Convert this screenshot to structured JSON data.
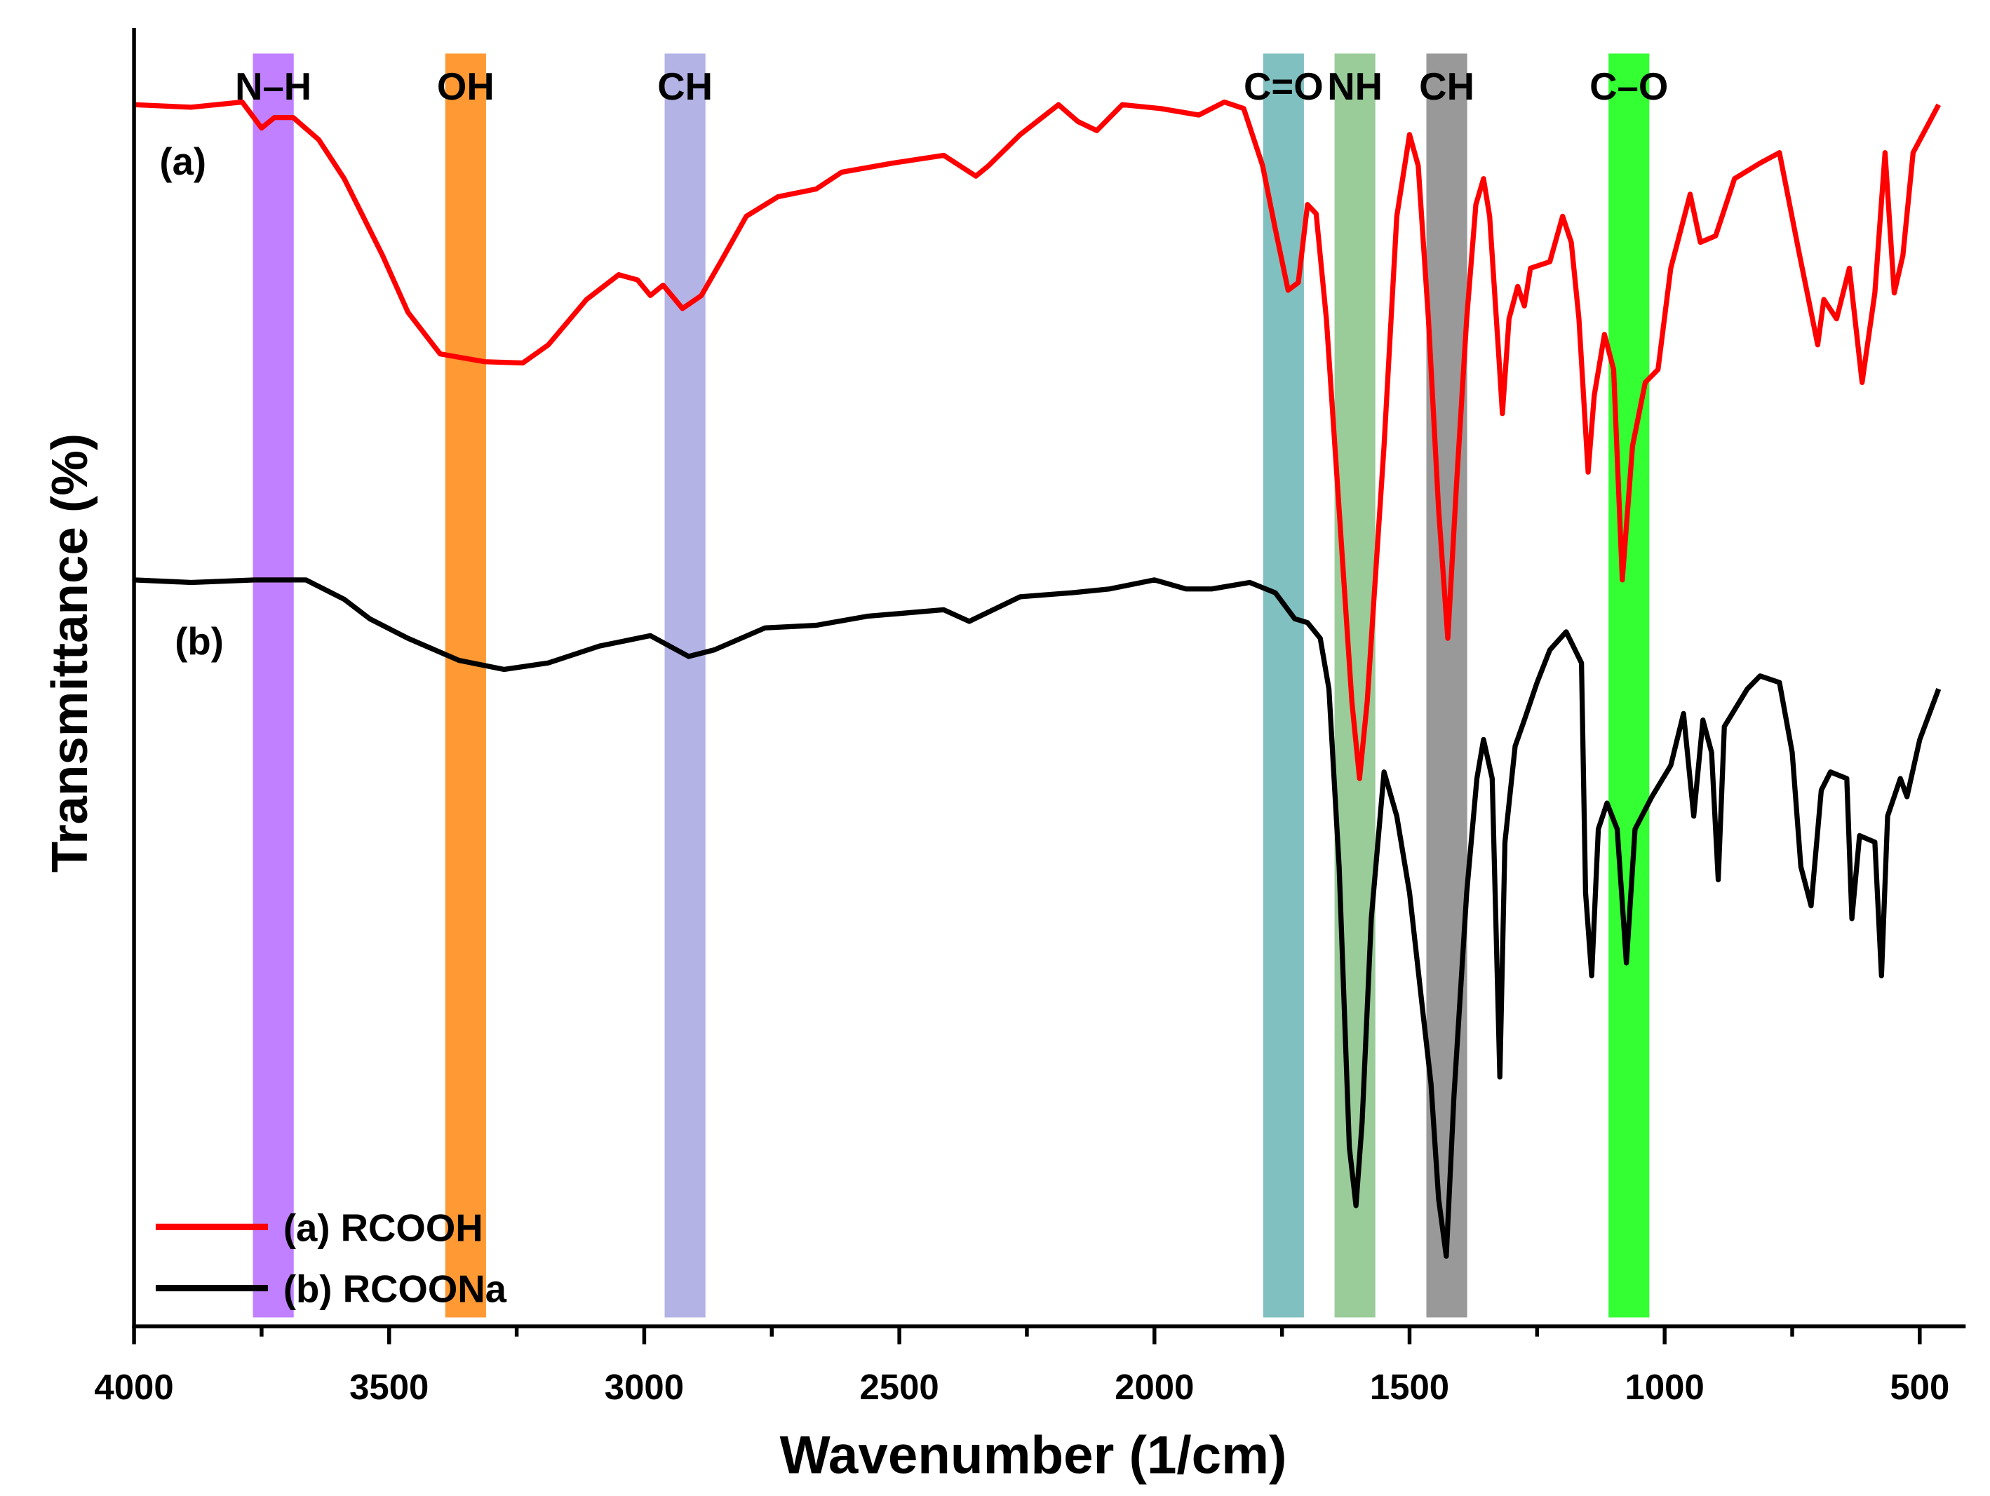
{
  "chart_data": {
    "type": "line",
    "x_label": "Wavenumber (1/cm)",
    "y_label": "Transmittance (%)",
    "xlim": [
      4000,
      410
    ],
    "ylim": [
      0,
      100
    ],
    "xticks": [
      4000,
      3500,
      3000,
      2500,
      2000,
      1500,
      1000,
      500
    ],
    "xminor_ticks": [
      3750,
      3250,
      2750,
      2250,
      1750,
      1250,
      750
    ],
    "legend": "lower left",
    "bands": [
      {
        "label": "N–H",
        "from": 3767,
        "to": 3687,
        "color": "#c080ff"
      },
      {
        "label": "OH",
        "from": 3390,
        "to": 3310,
        "color": "#ff9933"
      },
      {
        "label": "CH",
        "from": 2960,
        "to": 2880,
        "color": "#b3b3e6"
      },
      {
        "label": "C=O",
        "from": 1787,
        "to": 1707,
        "color": "#80c0c0"
      },
      {
        "label": "NH",
        "from": 1647,
        "to": 1567,
        "color": "#99cc99"
      },
      {
        "label": "CH",
        "from": 1467,
        "to": 1387,
        "color": "#999999"
      },
      {
        "label": "C–O",
        "from": 1110,
        "to": 1030,
        "color": "#33ff33"
      }
    ],
    "annotations": [
      "(a)",
      "(b)"
    ],
    "series": [
      {
        "name": "(a) RCOOH",
        "color": "#ff0000",
        "x": [
          4000,
          3888,
          3788,
          3750,
          3725,
          3688,
          3638,
          3588,
          3513,
          3463,
          3400,
          3313,
          3238,
          3188,
          3113,
          3050,
          3013,
          2988,
          2963,
          2925,
          2888,
          2850,
          2800,
          2738,
          2663,
          2613,
          2513,
          2413,
          2350,
          2325,
          2263,
          2188,
          2150,
          2113,
          2063,
          1988,
          1913,
          1863,
          1825,
          1788,
          1763,
          1738,
          1718,
          1700,
          1683,
          1663,
          1638,
          1613,
          1598,
          1583,
          1550,
          1525,
          1500,
          1483,
          1463,
          1443,
          1425,
          1408,
          1388,
          1370,
          1355,
          1343,
          1325,
          1318,
          1305,
          1288,
          1275,
          1263,
          1225,
          1200,
          1183,
          1168,
          1150,
          1138,
          1118,
          1100,
          1083,
          1063,
          1038,
          1013,
          988,
          950,
          930,
          900,
          863,
          813,
          775,
          738,
          700,
          688,
          663,
          638,
          613,
          588,
          568,
          550,
          533,
          513,
          463
        ],
        "values": [
          94.1,
          93.9,
          94.3,
          92.3,
          93.1,
          93.1,
          91.4,
          88.4,
          82.5,
          78.1,
          74.9,
          74.3,
          74.2,
          75.6,
          79.1,
          81.0,
          80.6,
          79.4,
          80.2,
          78.4,
          79.4,
          82.0,
          85.5,
          87.0,
          87.6,
          88.9,
          89.6,
          90.2,
          88.6,
          89.4,
          91.8,
          94.1,
          92.8,
          92.1,
          94.1,
          93.8,
          93.3,
          94.3,
          93.8,
          89.4,
          84.5,
          79.8,
          80.4,
          86.4,
          85.7,
          77.6,
          62.9,
          48.1,
          42.2,
          48.1,
          67.8,
          85.5,
          91.8,
          89.4,
          77.6,
          62.9,
          53.0,
          64.8,
          77.6,
          86.4,
          88.4,
          85.5,
          74.7,
          70.3,
          77.6,
          80.1,
          78.6,
          81.5,
          82.0,
          85.5,
          83.5,
          77.6,
          65.8,
          71.7,
          76.4,
          73.7,
          57.5,
          67.8,
          72.7,
          73.7,
          81.5,
          87.2,
          83.5,
          84.0,
          88.4,
          89.6,
          90.4,
          83.0,
          75.6,
          79.1,
          77.6,
          81.5,
          72.7,
          79.6,
          90.4,
          79.6,
          82.5,
          90.4,
          94.1
        ]
      },
      {
        "name": "(b) RCOONa",
        "color": "#000000",
        "x": [
          4000,
          3888,
          3763,
          3663,
          3588,
          3538,
          3463,
          3363,
          3275,
          3188,
          3088,
          2988,
          2913,
          2863,
          2763,
          2663,
          2563,
          2413,
          2363,
          2263,
          2163,
          2088,
          2000,
          1938,
          1888,
          1813,
          1763,
          1725,
          1700,
          1675,
          1658,
          1638,
          1618,
          1605,
          1593,
          1575,
          1550,
          1525,
          1500,
          1475,
          1458,
          1443,
          1428,
          1413,
          1388,
          1368,
          1355,
          1338,
          1323,
          1313,
          1293,
          1275,
          1250,
          1225,
          1193,
          1163,
          1155,
          1143,
          1130,
          1113,
          1093,
          1075,
          1058,
          1025,
          988,
          963,
          943,
          925,
          908,
          895,
          883,
          838,
          813,
          775,
          750,
          733,
          713,
          693,
          675,
          643,
          633,
          618,
          588,
          575,
          563,
          538,
          525,
          500,
          463
        ],
        "values": [
          57.5,
          57.3,
          57.5,
          57.5,
          56.0,
          54.5,
          53.0,
          51.3,
          50.6,
          51.1,
          52.4,
          53.2,
          51.6,
          52.1,
          53.8,
          54.0,
          54.7,
          55.2,
          54.3,
          56.2,
          56.5,
          56.8,
          57.5,
          56.8,
          56.8,
          57.3,
          56.5,
          54.5,
          54.2,
          53.0,
          49.1,
          35.4,
          13.8,
          9.3,
          15.7,
          31.4,
          42.7,
          39.3,
          33.4,
          24.6,
          18.7,
          9.8,
          5.4,
          17.7,
          33.4,
          42.2,
          45.2,
          42.2,
          19.2,
          37.3,
          44.7,
          46.7,
          49.6,
          52.1,
          53.5,
          51.1,
          33.4,
          27.0,
          38.3,
          40.3,
          38.3,
          28.0,
          38.3,
          40.8,
          43.2,
          47.2,
          39.3,
          46.7,
          44.2,
          34.4,
          46.2,
          49.1,
          50.1,
          49.6,
          44.2,
          35.4,
          32.4,
          41.3,
          42.7,
          42.2,
          31.4,
          37.8,
          37.3,
          27.0,
          39.3,
          42.2,
          40.8,
          45.2,
          49.1
        ]
      }
    ]
  }
}
